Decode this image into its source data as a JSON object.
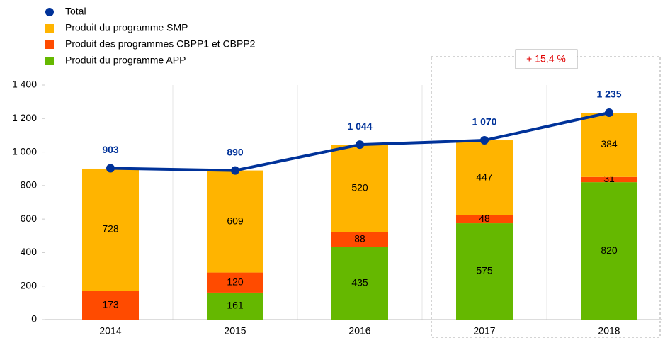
{
  "chart_data": {
    "type": "stacked-bar-line",
    "categories": [
      "2014",
      "2015",
      "2016",
      "2017",
      "2018"
    ],
    "series": [
      {
        "name": "Produit du programme APP",
        "color": "#65b800",
        "values": [
          null,
          161,
          435,
          575,
          820
        ]
      },
      {
        "name": "Produit des programmes CBPP1 et CBPP2",
        "color": "#ff4b00",
        "values": [
          173,
          120,
          88,
          48,
          31
        ]
      },
      {
        "name": "Produit du programme SMP",
        "color": "#ffb400",
        "values": [
          728,
          609,
          520,
          447,
          384
        ]
      },
      {
        "name": "Total",
        "color": "#003299",
        "type": "line",
        "values": [
          903,
          890,
          1044,
          1070,
          1235
        ],
        "value_labels": [
          "903",
          "890",
          "1 044",
          "1 070",
          "1 235"
        ]
      }
    ],
    "legend_order": [
      3,
      2,
      1,
      0
    ],
    "ylim": [
      0,
      1400
    ],
    "yticks": [
      0,
      200,
      400,
      600,
      800,
      {
        "value": 1000,
        "label": "1 000"
      },
      {
        "value": 1200,
        "label": "1 200"
      },
      {
        "value": 1400,
        "label": "1 400"
      }
    ],
    "annotation": "+ 15,4 %"
  }
}
